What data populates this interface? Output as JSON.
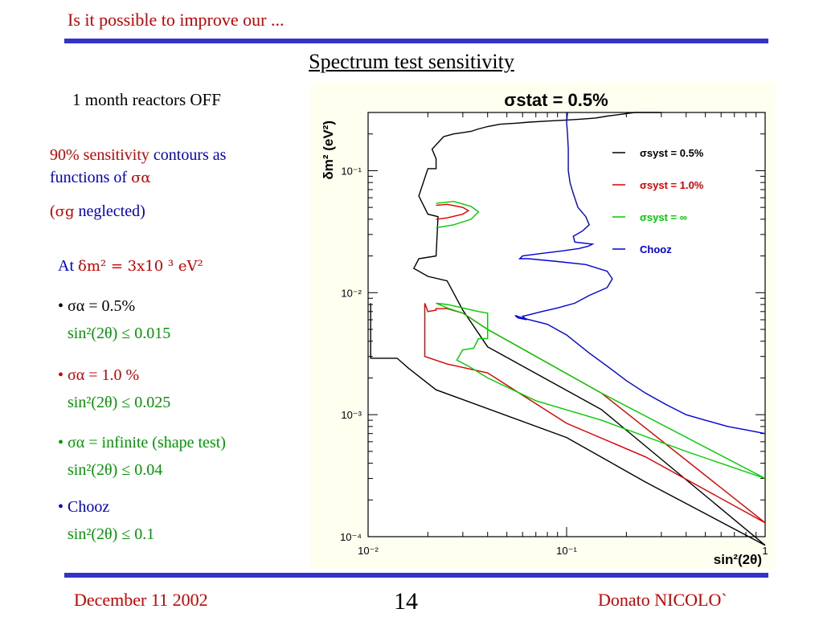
{
  "header": {
    "title": "Is it possible to improve our ..."
  },
  "slide": {
    "title": "Spectrum test sensitivity",
    "note": "1 month reactors OFF",
    "sens_line1_red": "90% sensitivity",
    "sens_line1_blue": "contours  as",
    "sens_line2": "functions of",
    "sigma_alpha": "σα",
    "neglect_open": "(",
    "sigma_g": "σg",
    "neglect_rest": "neglected)",
    "at_prefix": "At",
    "at_value": "δm² = 3x10 ³ eV²",
    "items": [
      {
        "bullet": "•",
        "label": "σα = 0.5%",
        "result": "sin²(2θ) ≤ 0.015",
        "color": "#000000"
      },
      {
        "bullet": "•",
        "label": "σα = 1.0 %",
        "result": "sin²(2θ) ≤ 0.025",
        "color": "#cc0000"
      },
      {
        "bullet": "•",
        "label": "σα = infinite (shape test)",
        "result": "sin²(2θ) ≤ 0.04",
        "color": "#009900"
      },
      {
        "bullet": "•",
        "label": "Chooz",
        "result": "sin²(2θ) ≤ 0.1",
        "color": "#0000cc"
      }
    ]
  },
  "footer": {
    "date": "December 11 2002",
    "page": "14",
    "author": "Donato NICOLO`"
  },
  "chart_data": {
    "type": "line",
    "title": "σstat = 0.5%",
    "xlabel": "sin²(2θ)",
    "ylabel": "δm² (eV²)",
    "x_scale": "log",
    "y_scale": "log",
    "xlim": [
      0.01,
      1
    ],
    "ylim": [
      0.0001,
      0.3
    ],
    "x_ticks": [
      {
        "v": 0.01,
        "label": "10⁻²"
      },
      {
        "v": 0.1,
        "label": "10⁻¹"
      },
      {
        "v": 1,
        "label": "1"
      }
    ],
    "y_ticks": [
      {
        "v": 0.0001,
        "label": "10⁻⁴"
      },
      {
        "v": 0.001,
        "label": "10⁻³"
      },
      {
        "v": 0.01,
        "label": "10⁻²"
      },
      {
        "v": 0.1,
        "label": "10⁻¹"
      }
    ],
    "legend_position": "top-right",
    "series": [
      {
        "name": "σsyst = 0.5%",
        "color": "#000000",
        "x": [
          0.0103,
          0.0103,
          0.014,
          0.016,
          0.0192,
          0.022,
          0.1,
          0.25,
          1.0,
          1.0,
          0.15,
          0.04,
          0.03,
          0.025,
          0.02,
          0.017,
          0.018,
          0.022,
          0.0225,
          0.02,
          0.018,
          0.02,
          0.022,
          0.022,
          0.021,
          0.024,
          0.027,
          0.03,
          0.033,
          0.036,
          0.04,
          0.046,
          0.055,
          0.065,
          0.08,
          0.1,
          0.12,
          0.14,
          0.16,
          0.19,
          0.22,
          0.25,
          0.3
        ],
        "y": [
          0.0082,
          0.0029,
          0.0029,
          0.0024,
          0.0019,
          0.0016,
          0.00065,
          0.00028,
          8.5e-05,
          8.5e-05,
          0.0011,
          0.0036,
          0.0072,
          0.0125,
          0.0136,
          0.0158,
          0.019,
          0.02,
          0.042,
          0.044,
          0.062,
          0.104,
          0.104,
          0.125,
          0.15,
          0.19,
          0.2,
          0.205,
          0.21,
          0.22,
          0.23,
          0.24,
          0.245,
          0.25,
          0.255,
          0.26,
          0.265,
          0.27,
          0.28,
          0.29,
          0.3,
          0.3,
          0.3
        ]
      },
      {
        "name": "σsyst = 1.0%",
        "color": "#dd0000",
        "x": [
          0.0193,
          0.0193,
          0.025,
          0.04,
          0.1,
          0.25,
          1.0,
          1.0,
          0.15,
          0.04,
          0.03,
          0.025,
          0.022,
          0.022,
          0.02,
          0.0193
        ],
        "y": [
          0.0082,
          0.003,
          0.0026,
          0.0022,
          0.00085,
          0.00045,
          0.00013,
          0.00013,
          0.0015,
          0.005,
          0.0068,
          0.0074,
          0.0074,
          0.0072,
          0.007,
          0.0082
        ]
      },
      {
        "name": "σsyst = 1.0% (island)",
        "color": "#dd0000",
        "x": [
          0.022,
          0.025,
          0.03,
          0.032,
          0.03,
          0.025,
          0.022
        ],
        "y": [
          0.052,
          0.053,
          0.05,
          0.047,
          0.044,
          0.041,
          0.04
        ]
      },
      {
        "name": "σsyst = ∞",
        "color": "#00cc00",
        "x": [
          0.022,
          0.025,
          0.03,
          0.036,
          0.04,
          0.04,
          0.036,
          0.034,
          0.03,
          0.028,
          0.032,
          0.04,
          0.07,
          0.15,
          0.4,
          1.0,
          1.0,
          0.15,
          0.04,
          0.03,
          0.025,
          0.022
        ],
        "y": [
          0.0082,
          0.008,
          0.0075,
          0.007,
          0.0068,
          0.0042,
          0.0042,
          0.0035,
          0.0034,
          0.0028,
          0.0025,
          0.002,
          0.0013,
          0.0009,
          0.0005,
          0.0003,
          0.0003,
          0.0015,
          0.005,
          0.0068,
          0.0075,
          0.0082
        ]
      },
      {
        "name": "σsyst = ∞ (island)",
        "color": "#00cc00",
        "x": [
          0.022,
          0.027,
          0.033,
          0.036,
          0.033,
          0.027,
          0.022
        ],
        "y": [
          0.054,
          0.056,
          0.051,
          0.046,
          0.04,
          0.036,
          0.034
        ]
      },
      {
        "name": "Chooz",
        "color": "#0000dd",
        "x": [
          0.101,
          0.1,
          0.101,
          0.102,
          0.102,
          0.104,
          0.108,
          0.114,
          0.125,
          0.13,
          0.12,
          0.108,
          0.11,
          0.135,
          0.128,
          0.115,
          0.095,
          0.075,
          0.06,
          0.058,
          0.064,
          0.09,
          0.125,
          0.16,
          0.17,
          0.16,
          0.13,
          0.11,
          0.09,
          0.075,
          0.065,
          0.06,
          0.063,
          0.057,
          0.055,
          0.06,
          0.08,
          0.1,
          0.13,
          0.16,
          0.2,
          0.25,
          0.32,
          0.4,
          0.5,
          0.65,
          0.8,
          1.0
        ],
        "y": [
          0.3,
          0.25,
          0.2,
          0.15,
          0.1,
          0.08,
          0.065,
          0.05,
          0.042,
          0.036,
          0.032,
          0.029,
          0.026,
          0.025,
          0.024,
          0.023,
          0.022,
          0.021,
          0.02,
          0.019,
          0.019,
          0.018,
          0.017,
          0.015,
          0.013,
          0.011,
          0.0095,
          0.0082,
          0.0075,
          0.007,
          0.0066,
          0.0064,
          0.006,
          0.0062,
          0.0065,
          0.0062,
          0.0055,
          0.0045,
          0.0032,
          0.0025,
          0.0019,
          0.0015,
          0.0012,
          0.001,
          0.0009,
          0.0008,
          0.00075,
          0.0007
        ]
      }
    ],
    "legend": [
      {
        "label": "σsyst = 0.5%",
        "color": "#000000"
      },
      {
        "label": "σsyst = 1.0%",
        "color": "#dd0000"
      },
      {
        "label": "σsyst = ∞",
        "color": "#00cc00"
      },
      {
        "label": "Chooz",
        "color": "#0000dd"
      }
    ]
  }
}
